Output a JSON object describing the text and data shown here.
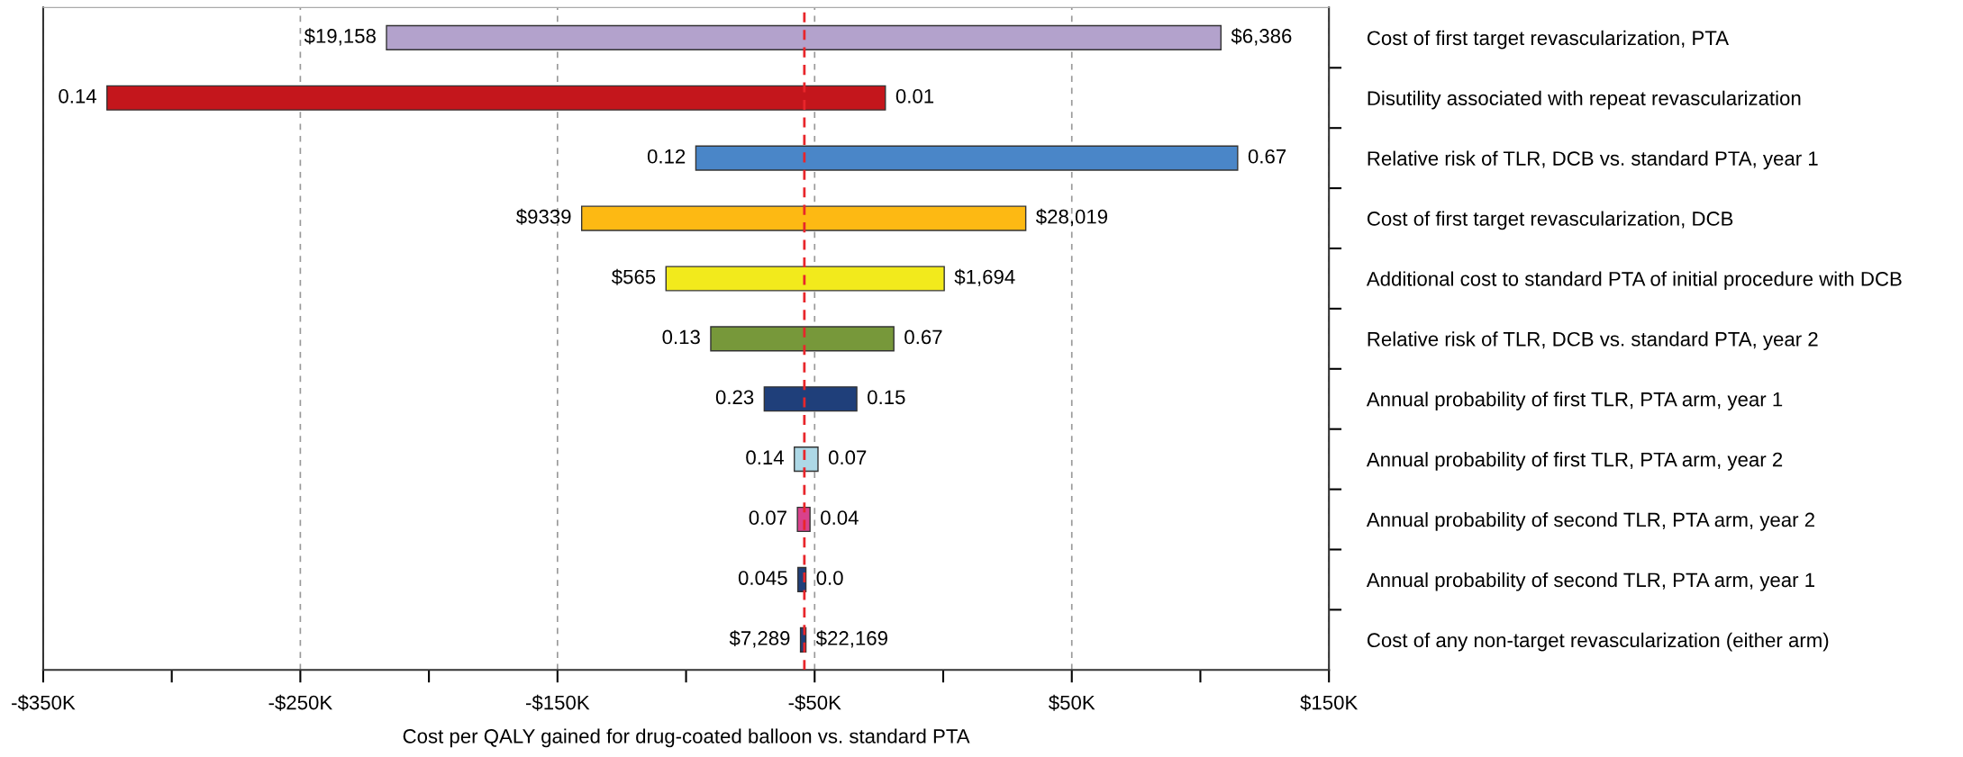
{
  "chart_data": {
    "type": "bar",
    "orientation": "horizontal",
    "xlabel": "Cost per QALY gained for drug-coated balloon vs. standard PTA",
    "categories": [
      "Cost of first target revascularization, PTA",
      "Disutility associated with repeat revascularization",
      "Relative risk of TLR, DCB vs. standard PTA, year 1",
      "Cost of first target revascularization, DCB",
      "Additional cost to standard PTA of initial procedure with DCB",
      "Relative risk of TLR, DCB vs. standard PTA, year 2",
      "Annual probability of first TLR, PTA arm, year 1",
      "Annual probability of first TLR, PTA arm, year 2",
      "Annual probability of second TLR, PTA arm, year 2",
      "Annual probability of second TLR, PTA arm, year 1",
      "Cost of any non-target revascularization (either arm)"
    ],
    "base": [
      -216.5,
      -325.2,
      -96.2,
      -140.6,
      -107.8,
      -90.4,
      -69.6,
      -57.9,
      -56.7,
      -56.5,
      -55.5
    ],
    "values": [
      324.5,
      302.7,
      210.7,
      172.7,
      108.2,
      71.2,
      36.0,
      9.2,
      4.9,
      3.1,
      2.1
    ],
    "colors": [
      "#b3a2cc",
      "#c4161c",
      "#4a86c8",
      "#fdb913",
      "#f2ea1c",
      "#77983a",
      "#1f3f7a",
      "#add8e6",
      "#d9418c",
      "#1f3f7a",
      "#1f3f7a"
    ],
    "xlim": [
      -350,
      150
    ],
    "xticks": [
      {
        "value": -350,
        "label": "-$350K"
      },
      {
        "value": -300,
        "label": null
      },
      {
        "value": -250,
        "label": "-$250K"
      },
      {
        "value": -200,
        "label": null
      },
      {
        "value": -150,
        "label": "-$150K"
      },
      {
        "value": -100,
        "label": null
      },
      {
        "value": -50,
        "label": "-$50K"
      },
      {
        "value": 0,
        "label": null
      },
      {
        "value": 50,
        "label": "$50K"
      },
      {
        "value": 100,
        "label": null
      },
      {
        "value": 150,
        "label": "$150K"
      }
    ],
    "grid": "x",
    "ref_lines": [
      {
        "axis": "x",
        "value": -54,
        "color": "#e8262b",
        "line_style": "dashed"
      }
    ],
    "annotations": [
      {
        "text": "$19,158",
        "x": -216.5,
        "y": "Cost of first target revascularization, PTA"
      },
      {
        "text": "$6,386",
        "x": 108.0,
        "y": "Cost of first target revascularization, PTA"
      },
      {
        "text": "0.14",
        "x": -325.2,
        "y": "Disutility associated with repeat revascularization"
      },
      {
        "text": "0.01",
        "x": -22.5,
        "y": "Disutility associated with repeat revascularization"
      },
      {
        "text": "0.12",
        "x": -96.2,
        "y": "Relative risk of TLR, DCB vs. standard PTA, year 1"
      },
      {
        "text": "0.67",
        "x": 114.5,
        "y": "Relative risk of TLR, DCB vs. standard PTA, year 1"
      },
      {
        "text": "$9339",
        "x": -140.6,
        "y": "Cost of first target revascularization, DCB"
      },
      {
        "text": "$28,019",
        "x": 32.1,
        "y": "Cost of first target revascularization, DCB"
      },
      {
        "text": "$565",
        "x": -107.8,
        "y": "Additional cost to standard PTA of initial procedure with DCB"
      },
      {
        "text": "$1,694",
        "x": 0.4,
        "y": "Additional cost to standard PTA of initial procedure with DCB"
      },
      {
        "text": "0.13",
        "x": -90.4,
        "y": "Relative risk of TLR, DCB vs. standard PTA, year 2"
      },
      {
        "text": "0.67",
        "x": -19.2,
        "y": "Relative risk of TLR, DCB vs. standard PTA, year 2"
      },
      {
        "text": "0.23",
        "x": -69.6,
        "y": "Annual probability of first TLR, PTA arm, year 1"
      },
      {
        "text": "0.15",
        "x": -33.6,
        "y": "Annual probability of first TLR, PTA arm, year 1"
      },
      {
        "text": "0.14",
        "x": -57.9,
        "y": "Annual probability of first TLR, PTA arm, year 2"
      },
      {
        "text": "0.07",
        "x": -48.7,
        "y": "Annual probability of first TLR, PTA arm, year 2"
      },
      {
        "text": "0.07",
        "x": -56.7,
        "y": "Annual probability of second TLR, PTA arm, year 2"
      },
      {
        "text": "0.04",
        "x": -51.8,
        "y": "Annual probability of second TLR, PTA arm, year 2"
      },
      {
        "text": "0.045",
        "x": -56.5,
        "y": "Annual probability of second TLR, PTA arm, year 1"
      },
      {
        "text": "0.0",
        "x": -53.4,
        "y": "Annual probability of second TLR, PTA arm, year 1"
      },
      {
        "text": "$7,289",
        "x": -55.5,
        "y": "Cost of any non-target revascularization (either arm)"
      },
      {
        "text": "$22,169",
        "x": -53.4,
        "y": "Cost of any non-target revascularization (either arm)"
      }
    ]
  }
}
